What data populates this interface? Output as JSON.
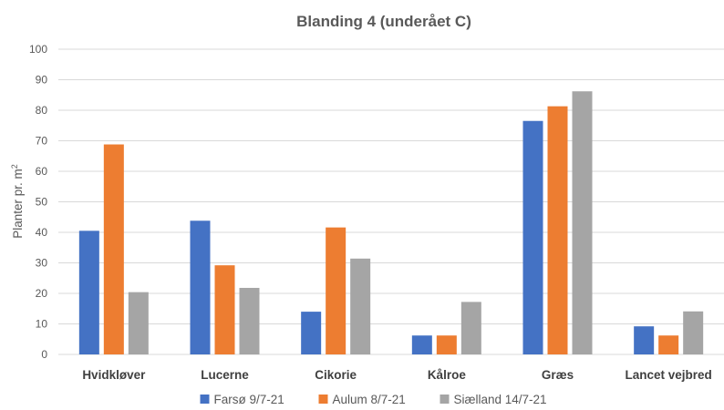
{
  "chart_data": {
    "type": "bar",
    "title": "Blanding 4 (underået C)",
    "ylabel": "Planter pr. m",
    "ylabel_superscript": "2",
    "xlabel": "",
    "ylim": [
      0,
      100
    ],
    "yticks": [
      0,
      10,
      20,
      30,
      40,
      50,
      60,
      70,
      80,
      90,
      100
    ],
    "grid": true,
    "legend_position": "bottom",
    "categories": [
      "Hvidkløver",
      "Lucerne",
      "Cikorie",
      "Kålroe",
      "Græs",
      "Lancet vejbred"
    ],
    "series": [
      {
        "name": "Farsø 9/7-21",
        "color": "#4472c4",
        "values": [
          40.5,
          43.8,
          14,
          6.2,
          76.5,
          9.2
        ]
      },
      {
        "name": "Aulum 8/7-21",
        "color": "#ed7d31",
        "values": [
          68.8,
          29.2,
          41.6,
          6.2,
          81.3,
          6.2
        ]
      },
      {
        "name": "Siælland 14/7-21",
        "color": "#a5a5a5",
        "values": [
          20.4,
          21.8,
          31.4,
          17.2,
          86.2,
          14.1
        ]
      }
    ]
  }
}
